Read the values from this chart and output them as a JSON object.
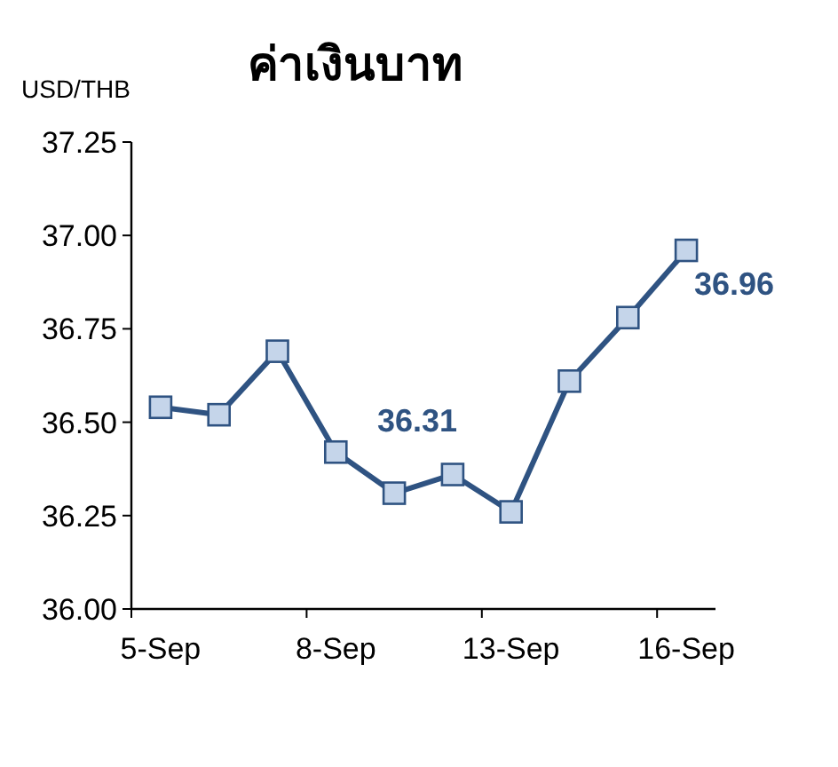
{
  "chart_data": {
    "type": "line",
    "title": "ค่าเงินบาท",
    "ylabel": "USD/THB",
    "categories": [
      "5-Sep",
      null,
      null,
      "8-Sep",
      null,
      null,
      "13-Sep",
      null,
      null,
      "16-Sep"
    ],
    "series": [
      {
        "color": "#2f5382",
        "values": [
          36.54,
          36.52,
          36.69,
          36.42,
          36.31,
          36.36,
          36.26,
          36.61,
          36.78,
          36.96
        ],
        "value_labels": [
          null,
          null,
          null,
          null,
          "36.31",
          null,
          null,
          null,
          null,
          "36.96"
        ]
      }
    ],
    "ylim": [
      36.0,
      37.25
    ],
    "yticks": [
      {
        "value": 36.0,
        "label": "36.00"
      },
      {
        "value": 36.25,
        "label": "36.25"
      },
      {
        "value": 36.5,
        "label": "36.50"
      },
      {
        "value": 36.75,
        "label": "36.75"
      },
      {
        "value": 37.0,
        "label": "37.00"
      },
      {
        "value": 37.25,
        "label": "37.25"
      }
    ],
    "marker": "square",
    "grid": false
  }
}
